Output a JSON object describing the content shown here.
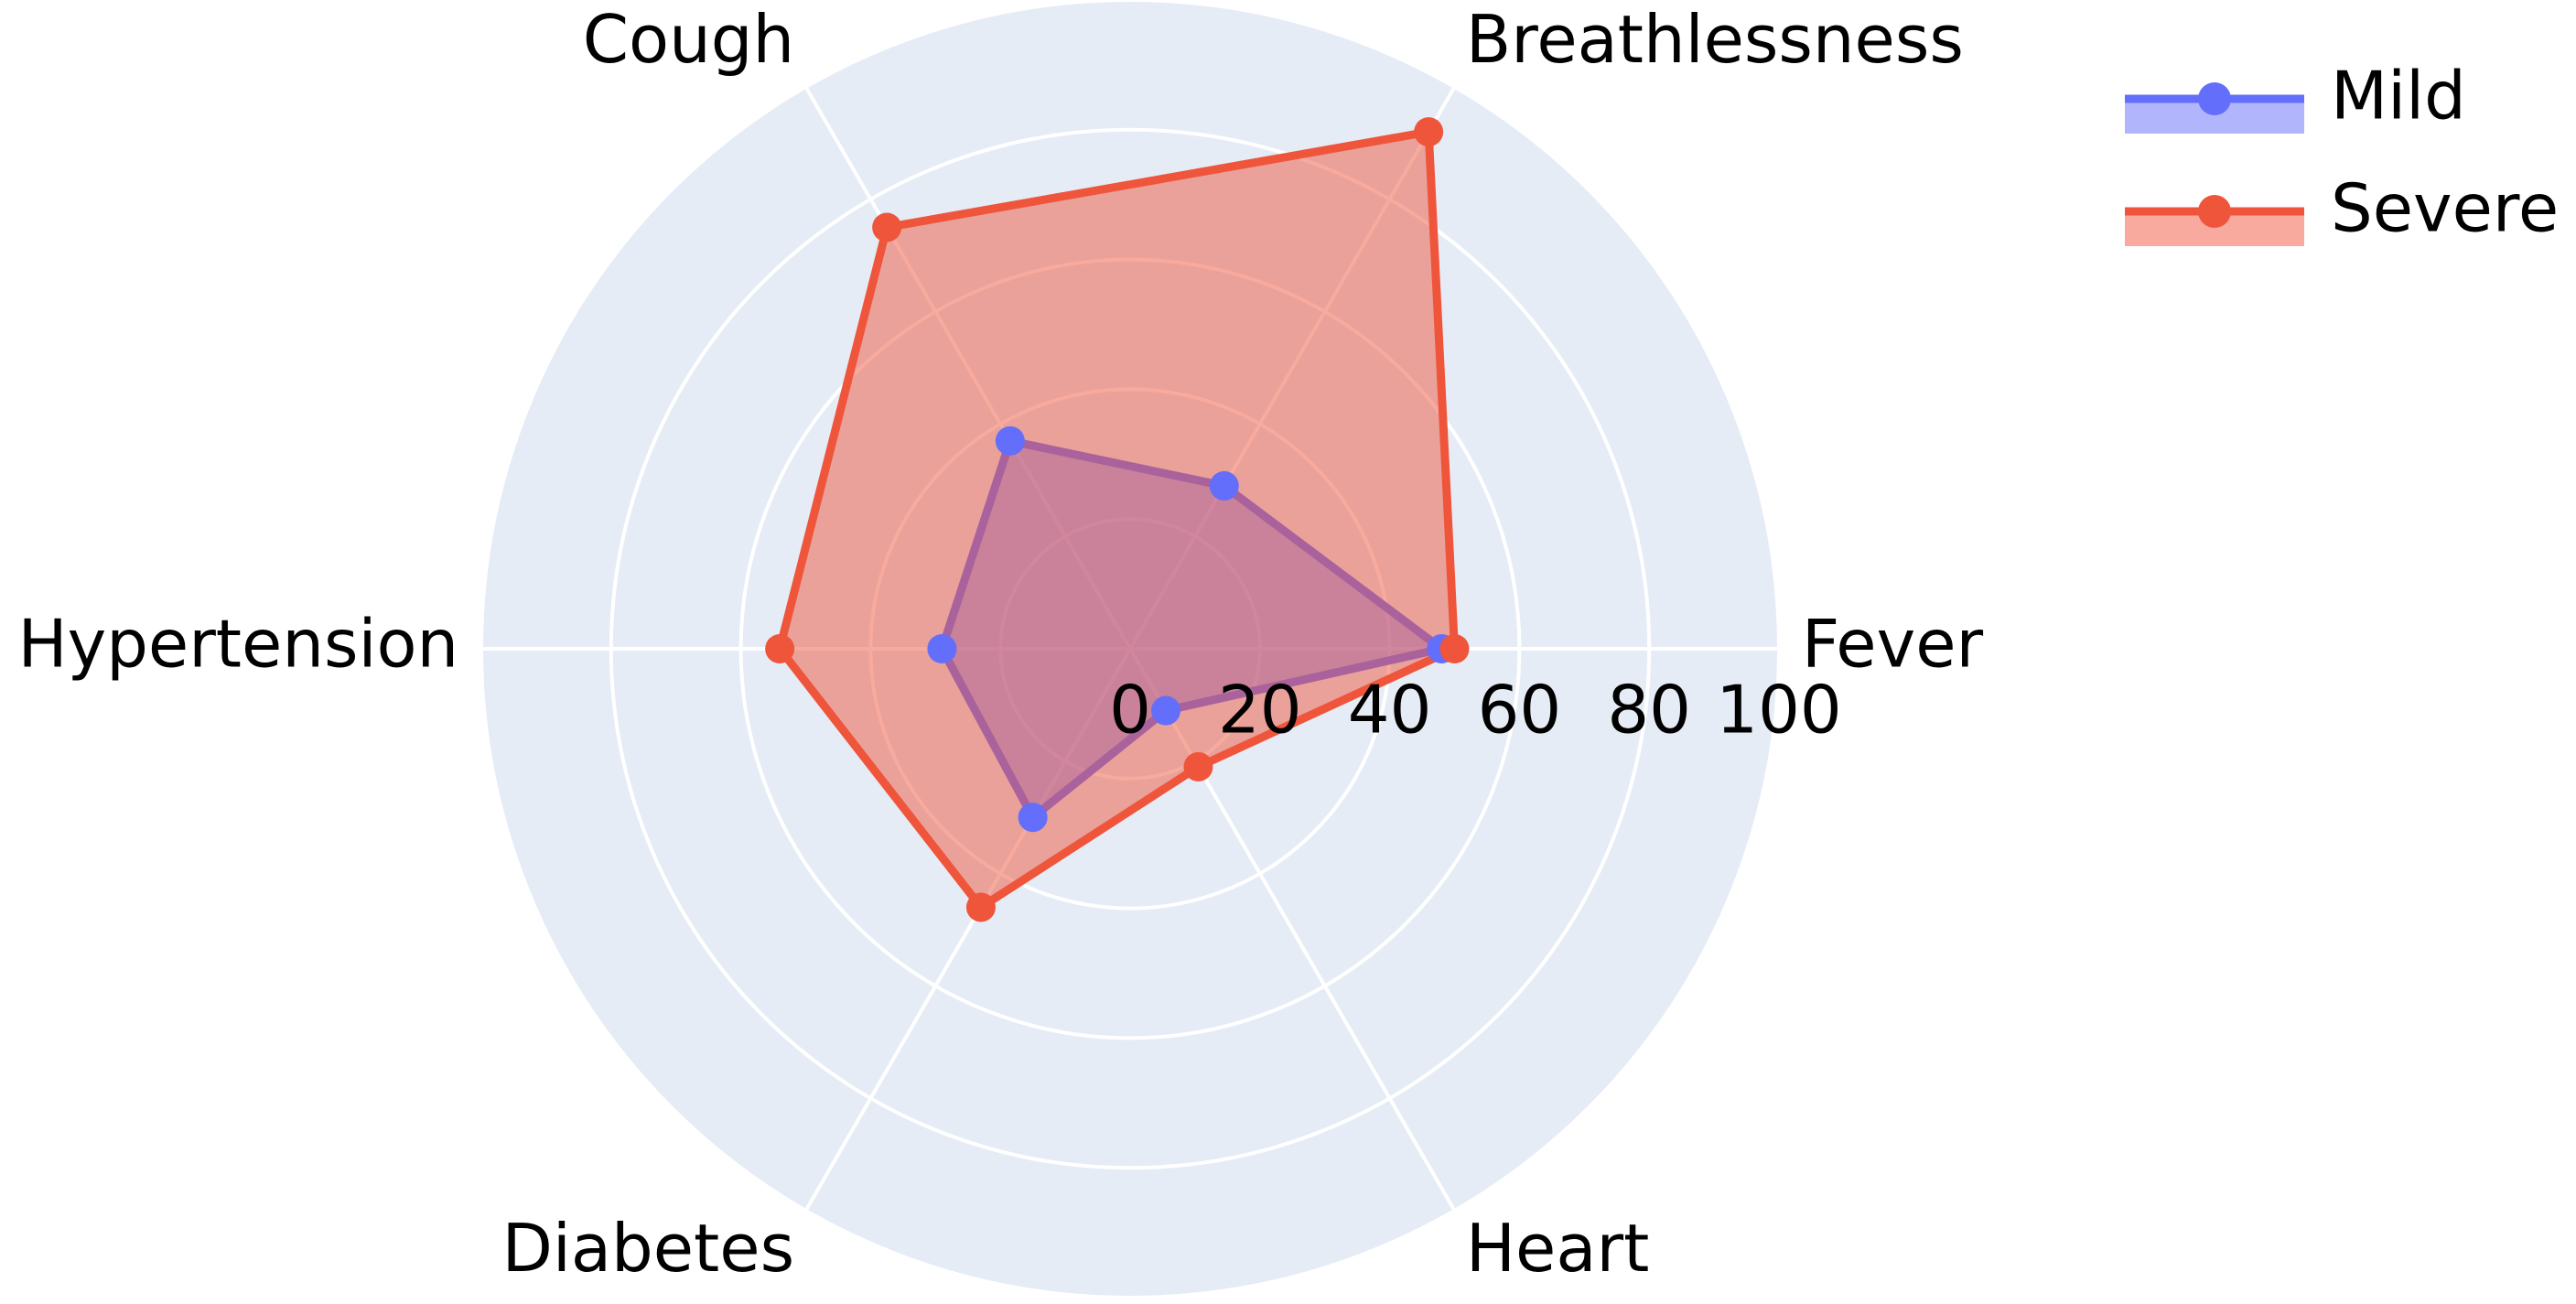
{
  "chart_data": {
    "type": "radar",
    "categories": [
      "Fever",
      "Breathlessness",
      "Cough",
      "Hypertension",
      "Diabetes",
      "Heart"
    ],
    "series": [
      {
        "name": "Mild",
        "color": "#636efa",
        "values": [
          48,
          29,
          37,
          29,
          30,
          11
        ]
      },
      {
        "name": "Severe",
        "color": "#ef553b",
        "values": [
          50,
          92,
          75,
          54,
          46,
          21
        ]
      }
    ],
    "ylim": [
      0,
      100
    ],
    "yticks": [
      0,
      20,
      40,
      60,
      80,
      100
    ],
    "grid": true,
    "legend": "top-right"
  }
}
